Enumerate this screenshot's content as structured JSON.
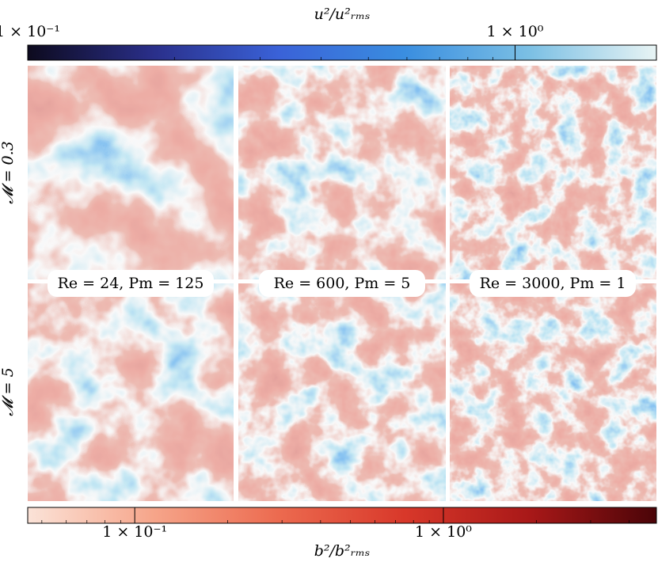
{
  "top_colorbar": {
    "label": "u²/u²ᵣₘₛ",
    "scale": "log",
    "lim": [
      0.1,
      1.95
    ],
    "ticks": [
      {
        "value": 0.1,
        "label": "1 × 10⁻¹"
      },
      {
        "value": 1,
        "label": "1 × 10⁰"
      }
    ],
    "colors": [
      "#0d0a1e",
      "#2a2f8a",
      "#3a62d8",
      "#3a8ee0",
      "#7cc0e4",
      "#e8f4f4"
    ]
  },
  "bottom_colorbar": {
    "label": "b²/b²ᵣₘₛ",
    "scale": "log",
    "lim": [
      0.045,
      4.9
    ],
    "ticks": [
      {
        "value": 0.1,
        "label": "1 × 10⁻¹"
      },
      {
        "value": 1,
        "label": "1 × 10⁰"
      }
    ],
    "colors": [
      "#fbe3d8",
      "#f6a58a",
      "#ec6a4f",
      "#d8382a",
      "#a81818",
      "#4a0408"
    ]
  },
  "row_labels": [
    "𝓜 = 0.3",
    "𝓜 = 5"
  ],
  "panel_labels": [
    "Re = 24, Pm = 125",
    "Re = 600, Pm = 5",
    "Re = 3000, Pm = 1"
  ]
}
